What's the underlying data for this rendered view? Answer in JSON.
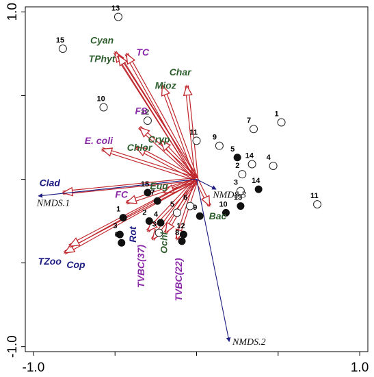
{
  "chart_data": {
    "type": "scatter",
    "title": "",
    "xlabel": "",
    "ylabel": "",
    "xlim": [
      -1.05,
      1.05
    ],
    "ylim": [
      -1.03,
      1.03
    ],
    "x_ticks": [
      -1.0,
      1.0
    ],
    "x_tick_labels": [
      "-1.0",
      "1.0"
    ],
    "y_ticks": [
      1.0,
      -1.0
    ],
    "y_tick_labels": [
      "1.0",
      "-1.0"
    ],
    "grid": false,
    "colors": {
      "env_arrow": "#c0272d",
      "nmds_arrow": "#1a1a80",
      "green_label": "#2e5e2e",
      "purple_label": "#8a2aa8",
      "blue_label": "#1a1a80"
    },
    "open_points": [
      {
        "label": "13",
        "x": -0.48,
        "y": 0.97
      },
      {
        "label": "15",
        "x": -0.82,
        "y": 0.78
      },
      {
        "label": "10",
        "x": -0.57,
        "y": 0.43
      },
      {
        "label": "12",
        "x": -0.3,
        "y": 0.35
      },
      {
        "label": "11",
        "x": 0.0,
        "y": 0.23
      },
      {
        "label": "9",
        "x": 0.14,
        "y": 0.2
      },
      {
        "label": "7",
        "x": 0.35,
        "y": 0.3
      },
      {
        "label": "1",
        "x": 0.52,
        "y": 0.34
      },
      {
        "label": "14",
        "x": 0.34,
        "y": 0.09
      },
      {
        "label": "4",
        "x": 0.47,
        "y": 0.08
      },
      {
        "label": "2",
        "x": 0.28,
        "y": 0.03
      },
      {
        "label": "3",
        "x": 0.27,
        "y": -0.07
      },
      {
        "label": "6",
        "x": -0.04,
        "y": -0.16
      },
      {
        "label": "5",
        "x": -0.12,
        "y": -0.2
      },
      {
        "label": "3",
        "x": -0.23,
        "y": -0.32
      },
      {
        "label": "11",
        "x": 0.74,
        "y": -0.15
      }
    ],
    "filled_points": [
      {
        "label": "5",
        "x": 0.25,
        "y": 0.13
      },
      {
        "label": "14",
        "x": 0.38,
        "y": -0.06
      },
      {
        "label": "13",
        "x": 0.27,
        "y": -0.16
      },
      {
        "label": "10",
        "x": 0.18,
        "y": -0.2
      },
      {
        "label": "9",
        "x": 0.02,
        "y": -0.22
      },
      {
        "label": "12",
        "x": -0.08,
        "y": -0.33
      },
      {
        "label": "8",
        "x": -0.09,
        "y": -0.37
      },
      {
        "label": "1",
        "x": -0.45,
        "y": -0.23
      },
      {
        "label": "15",
        "x": -0.3,
        "y": -0.08
      },
      {
        "label": "2",
        "x": -0.29,
        "y": -0.25
      },
      {
        "label": "7",
        "x": -0.24,
        "y": -0.13
      },
      {
        "label": "4",
        "x": -0.22,
        "y": -0.26
      },
      {
        "label": "3",
        "x": -0.47,
        "y": -0.33
      },
      {
        "label": "6",
        "x": -0.46,
        "y": -0.38
      }
    ],
    "env_vectors": [
      {
        "name": "Cyan",
        "x": -0.5,
        "y": 0.76,
        "label_x": -0.58,
        "label_y": 0.81,
        "color_key": "green_label"
      },
      {
        "name": "TPhyt",
        "x": -0.48,
        "y": 0.74,
        "label_x": -0.58,
        "label_y": 0.7,
        "color_key": "green_label"
      },
      {
        "name": "TC",
        "x": -0.43,
        "y": 0.75,
        "label_x": -0.33,
        "label_y": 0.74,
        "color_key": "purple_label"
      },
      {
        "name": "Char",
        "x": -0.06,
        "y": 0.56,
        "label_x": -0.1,
        "label_y": 0.62,
        "color_key": "green_label"
      },
      {
        "name": "Mioz",
        "x": -0.21,
        "y": 0.56,
        "label_x": -0.19,
        "label_y": 0.54,
        "color_key": "green_label"
      },
      {
        "name": "FS",
        "x": -0.35,
        "y": 0.31,
        "label_x": -0.34,
        "label_y": 0.39,
        "color_key": "purple_label"
      },
      {
        "name": "Cryp",
        "x": -0.22,
        "y": 0.23,
        "label_x": -0.23,
        "label_y": 0.22,
        "color_key": "green_label"
      },
      {
        "name": "E. coli",
        "x": -0.58,
        "y": 0.18,
        "label_x": -0.6,
        "label_y": 0.21,
        "color_key": "purple_label"
      },
      {
        "name": "Chlor",
        "x": -0.37,
        "y": 0.19,
        "label_x": -0.35,
        "label_y": 0.17,
        "color_key": "green_label"
      },
      {
        "name": "Clad",
        "x": -0.82,
        "y": -0.08,
        "label_x": -0.9,
        "label_y": -0.04,
        "color_key": "blue_label"
      },
      {
        "name": "FC",
        "x": -0.43,
        "y": -0.14,
        "label_x": -0.46,
        "label_y": -0.11,
        "color_key": "purple_label"
      },
      {
        "name": "Eug",
        "x": -0.2,
        "y": -0.08,
        "label_x": -0.23,
        "label_y": -0.06,
        "color_key": "green_label"
      },
      {
        "name": "Rot",
        "x": -0.3,
        "y": -0.31,
        "label_x": -0.37,
        "label_y": -0.33,
        "color_key": "blue_label"
      },
      {
        "name": "TVBC(37)",
        "x": -0.27,
        "y": -0.36,
        "label_x": -0.32,
        "label_y": -0.52,
        "color_key": "purple_label"
      },
      {
        "name": "TVBC(22)",
        "x": -0.12,
        "y": -0.36,
        "label_x": -0.09,
        "label_y": -0.6,
        "color_key": "purple_label"
      },
      {
        "name": "Ochl",
        "x": -0.19,
        "y": -0.32,
        "label_x": -0.18,
        "label_y": -0.38,
        "color_key": "green_label"
      },
      {
        "name": "Bac",
        "x": 0.08,
        "y": -0.16,
        "label_x": 0.13,
        "label_y": -0.24,
        "color_key": "green_label"
      },
      {
        "name": "TZoo",
        "x": -0.81,
        "y": -0.44,
        "label_x": -0.9,
        "label_y": -0.51,
        "color_key": "blue_label"
      },
      {
        "name": "Cop",
        "x": -0.78,
        "y": -0.4,
        "label_x": -0.74,
        "label_y": -0.53,
        "color_key": "blue_label"
      }
    ],
    "nmds_vectors": [
      {
        "name": "NMDS.1",
        "x": -0.97,
        "y": -0.1,
        "label_x": -0.98,
        "label_y": -0.16
      },
      {
        "name": "NMDS.2",
        "x": 0.2,
        "y": -0.97,
        "label_x": 0.22,
        "label_y": -0.99
      },
      {
        "name": "NMDS.3",
        "x": 0.12,
        "y": -0.06,
        "label_x": 0.1,
        "label_y": -0.11
      }
    ]
  }
}
